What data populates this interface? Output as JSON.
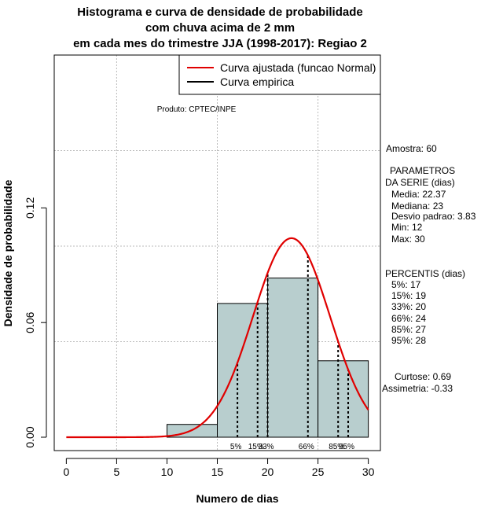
{
  "title_lines": [
    "Histograma e curva de densidade de probabilidade",
    "com chuva acima de 2 mm",
    "em cada mes do trimestre JJA (1998-2017): Regiao 2"
  ],
  "product": "Produto: CPTEC/INPE",
  "legend": {
    "fitted": "Curva ajustada (funcao Normal)",
    "empirical": "Curva empirica"
  },
  "stats": {
    "sample": "Amostra: 60",
    "params_title_1": "PARAMETROS",
    "params_title_2": "DA SERIE (dias)",
    "media": "Media: 22.37",
    "mediana": "Mediana: 23",
    "desvio": "Desvio padrao: 3.83",
    "min": "Min: 12",
    "max": "Max: 30",
    "perc_title": "PERCENTIS (dias)",
    "p5": "5%: 17",
    "p15": "15%: 19",
    "p33": "33%: 20",
    "p66": "66%: 24",
    "p85": "85%: 27",
    "p95": "95%: 28",
    "curtose": "Curtose: 0.69",
    "assimetria": "Assimetria: -0.33"
  },
  "colors": {
    "bars": "#b8cece",
    "fitted_curve": "#e00000",
    "grid": "#bbbbbb"
  },
  "chart_data": {
    "type": "bar",
    "xlabel": "Numero de dias",
    "ylabel": "Densidade de probabilidade",
    "xlim": [
      -1.2,
      31.2
    ],
    "ylim": [
      -0.007,
      0.2
    ],
    "x_ticks": [
      0,
      5,
      10,
      15,
      20,
      25,
      30
    ],
    "y_ticks": [
      0.0,
      0.06,
      0.12
    ],
    "y_tick_labels": [
      "0.00",
      "0.06",
      "0.12"
    ],
    "grid": true,
    "legend_position": "top-right",
    "histogram": [
      {
        "from": 10,
        "to": 15,
        "density": 0.0067
      },
      {
        "from": 15,
        "to": 20,
        "density": 0.07
      },
      {
        "from": 20,
        "to": 25,
        "density": 0.0833
      },
      {
        "from": 25,
        "to": 30,
        "density": 0.04
      }
    ],
    "normal_fit": {
      "mean": 22.37,
      "sd": 3.83,
      "x_range": [
        0,
        30
      ]
    },
    "percentiles": [
      {
        "label": "5%",
        "value": 17
      },
      {
        "label": "15%",
        "value": 19
      },
      {
        "label": "33%",
        "value": 20
      },
      {
        "label": "66%",
        "value": 24
      },
      {
        "label": "85%",
        "value": 27
      },
      {
        "label": "95%",
        "value": 28
      }
    ]
  }
}
